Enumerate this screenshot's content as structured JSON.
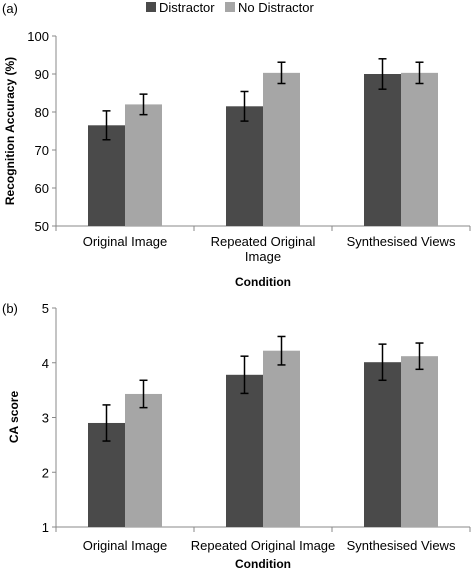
{
  "legend": {
    "items": [
      {
        "label": "Distractor",
        "color": "#4a4a4a"
      },
      {
        "label": "No Distractor",
        "color": "#a6a6a6"
      }
    ]
  },
  "chart_data": [
    {
      "type": "bar",
      "panel_label": "(a)",
      "categories": [
        [
          "Original Image"
        ],
        [
          "Repeated Original",
          "Image"
        ],
        [
          "Synthesised Views"
        ]
      ],
      "series": [
        {
          "name": "Distractor",
          "values": [
            76.5,
            81.5,
            90.0
          ],
          "errors": [
            3.8,
            3.9,
            4.0
          ],
          "color": "#4a4a4a"
        },
        {
          "name": "No Distractor",
          "values": [
            82.0,
            90.3,
            90.3
          ],
          "errors": [
            2.7,
            2.8,
            2.8
          ],
          "color": "#a6a6a6"
        }
      ],
      "xlabel": "Condition",
      "ylabel": "Recognition Accuracy (%)",
      "ylim": [
        50,
        100
      ],
      "yticks": [
        50,
        60,
        70,
        80,
        90,
        100
      ],
      "grid": false,
      "legend_position": "top"
    },
    {
      "type": "bar",
      "panel_label": "(b)",
      "categories": [
        [
          "Original Image"
        ],
        [
          "Repeated Original Image"
        ],
        [
          "Synthesised Views"
        ]
      ],
      "series": [
        {
          "name": "Distractor",
          "values": [
            2.9,
            3.78,
            4.01
          ],
          "errors": [
            0.33,
            0.34,
            0.33
          ],
          "color": "#4a4a4a"
        },
        {
          "name": "No Distractor",
          "values": [
            3.43,
            4.22,
            4.12
          ],
          "errors": [
            0.25,
            0.26,
            0.24
          ],
          "color": "#a6a6a6"
        }
      ],
      "xlabel": "Condition",
      "ylabel": "CA score",
      "ylim": [
        1,
        5
      ],
      "yticks": [
        1,
        2,
        3,
        4,
        5
      ],
      "grid": false
    }
  ]
}
